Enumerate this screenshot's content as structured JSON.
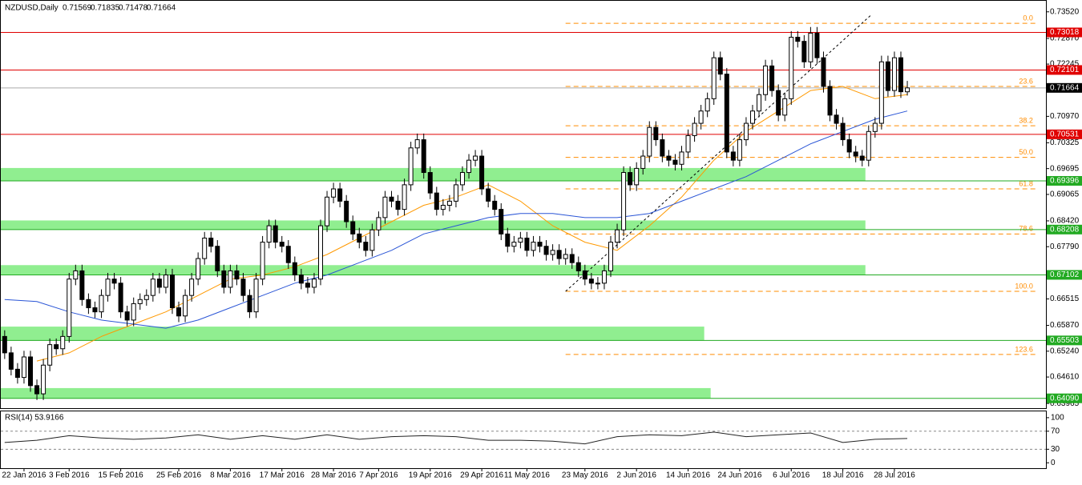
{
  "chart_data": {
    "type": "candlestick",
    "header": "NZDUSD,Daily",
    "candles": {
      "open": [
        0.656,
        0.652,
        0.648,
        0.646,
        0.651,
        0.644,
        0.642,
        0.649,
        0.654,
        0.653,
        0.656,
        0.67,
        0.672,
        0.665,
        0.663,
        0.662,
        0.666,
        0.67,
        0.669,
        0.662,
        0.66,
        0.664,
        0.665,
        0.666,
        0.67,
        0.668,
        0.671,
        0.663,
        0.661,
        0.666,
        0.67,
        0.675,
        0.68,
        0.678,
        0.672,
        0.668,
        0.672,
        0.67,
        0.666,
        0.662,
        0.67,
        0.679,
        0.683,
        0.679,
        0.678,
        0.674,
        0.671,
        0.669,
        0.668,
        0.67,
        0.683,
        0.69,
        0.692,
        0.689,
        0.684,
        0.681,
        0.679,
        0.677,
        0.682,
        0.685,
        0.69,
        0.689,
        0.687,
        0.693,
        0.702,
        0.704,
        0.696,
        0.691,
        0.687,
        0.688,
        0.689,
        0.693,
        0.696,
        0.699,
        0.7,
        0.692,
        0.689,
        0.687,
        0.681,
        0.678,
        0.679,
        0.68,
        0.677,
        0.679,
        0.678,
        0.676,
        0.677,
        0.675,
        0.676,
        0.674,
        0.672,
        0.67,
        0.669,
        0.669,
        0.672,
        0.679,
        0.682,
        0.696,
        0.693,
        0.697,
        0.7,
        0.707,
        0.704,
        0.7,
        0.699,
        0.698,
        0.701,
        0.705,
        0.708,
        0.711,
        0.714,
        0.724,
        0.72,
        0.701,
        0.699,
        0.704,
        0.708,
        0.711,
        0.715,
        0.722,
        0.716,
        0.71,
        0.714,
        0.729,
        0.728,
        0.723,
        0.73,
        0.724,
        0.717,
        0.71,
        0.708,
        0.704,
        0.701,
        0.7,
        0.699,
        0.706,
        0.708,
        0.723,
        0.716,
        0.724,
        0.71569
      ],
      "high": [
        0.6575,
        0.6535,
        0.6495,
        0.6525,
        0.6525,
        0.6455,
        0.6505,
        0.6555,
        0.6555,
        0.6575,
        0.6715,
        0.6735,
        0.6735,
        0.6665,
        0.6645,
        0.6675,
        0.6715,
        0.6715,
        0.6705,
        0.6635,
        0.6655,
        0.6665,
        0.6675,
        0.6715,
        0.6715,
        0.6725,
        0.6725,
        0.6645,
        0.6675,
        0.6715,
        0.6765,
        0.6815,
        0.6815,
        0.6795,
        0.6735,
        0.6735,
        0.6735,
        0.6715,
        0.6675,
        0.6715,
        0.6805,
        0.6845,
        0.6845,
        0.6805,
        0.6795,
        0.6755,
        0.6725,
        0.6705,
        0.6715,
        0.6845,
        0.6915,
        0.6935,
        0.6935,
        0.6905,
        0.6855,
        0.6825,
        0.6805,
        0.6835,
        0.6865,
        0.6915,
        0.6915,
        0.6905,
        0.6945,
        0.7035,
        0.7055,
        0.7055,
        0.6975,
        0.6925,
        0.6895,
        0.6905,
        0.6945,
        0.6975,
        0.7005,
        0.7015,
        0.7015,
        0.6935,
        0.6905,
        0.6885,
        0.6825,
        0.6805,
        0.6815,
        0.6815,
        0.6805,
        0.6805,
        0.6795,
        0.6785,
        0.6785,
        0.6775,
        0.6775,
        0.6755,
        0.6735,
        0.6715,
        0.6705,
        0.6735,
        0.6805,
        0.6835,
        0.6975,
        0.6975,
        0.6985,
        0.7015,
        0.7085,
        0.7085,
        0.7055,
        0.7015,
        0.7005,
        0.7025,
        0.7065,
        0.7095,
        0.7125,
        0.7155,
        0.7255,
        0.7255,
        0.7215,
        0.7025,
        0.7055,
        0.7095,
        0.7125,
        0.7165,
        0.7235,
        0.7235,
        0.7175,
        0.7155,
        0.7305,
        0.7305,
        0.7295,
        0.7315,
        0.7315,
        0.7255,
        0.7185,
        0.7115,
        0.7095,
        0.7055,
        0.7025,
        0.7015,
        0.7075,
        0.7095,
        0.7245,
        0.7245,
        0.7255,
        0.7255,
        0.71835
      ],
      "low": [
        0.6505,
        0.6465,
        0.6445,
        0.6445,
        0.6425,
        0.6405,
        0.6405,
        0.6475,
        0.6515,
        0.6515,
        0.6545,
        0.6685,
        0.6635,
        0.6615,
        0.6605,
        0.6605,
        0.6645,
        0.6675,
        0.6605,
        0.6585,
        0.6585,
        0.6625,
        0.6635,
        0.6645,
        0.6665,
        0.6665,
        0.6615,
        0.6595,
        0.6595,
        0.6645,
        0.6685,
        0.6735,
        0.6765,
        0.6705,
        0.6665,
        0.6665,
        0.6685,
        0.6645,
        0.6605,
        0.6605,
        0.6685,
        0.6775,
        0.6775,
        0.6765,
        0.6725,
        0.6695,
        0.6675,
        0.6665,
        0.6665,
        0.6685,
        0.6815,
        0.6885,
        0.6875,
        0.6825,
        0.6795,
        0.6775,
        0.6755,
        0.6755,
        0.6805,
        0.6835,
        0.6875,
        0.6855,
        0.6855,
        0.6915,
        0.7005,
        0.6945,
        0.6895,
        0.6855,
        0.6855,
        0.6865,
        0.6875,
        0.6915,
        0.6945,
        0.6975,
        0.6905,
        0.6875,
        0.6855,
        0.6795,
        0.6765,
        0.6765,
        0.6775,
        0.6755,
        0.6755,
        0.6765,
        0.6745,
        0.6745,
        0.6735,
        0.6735,
        0.6725,
        0.6705,
        0.6685,
        0.6675,
        0.6675,
        0.6675,
        0.6705,
        0.6775,
        0.6805,
        0.6915,
        0.6915,
        0.6955,
        0.6985,
        0.7025,
        0.6985,
        0.6975,
        0.6965,
        0.6965,
        0.6995,
        0.7035,
        0.7065,
        0.7095,
        0.7125,
        0.7185,
        0.6995,
        0.6975,
        0.6975,
        0.7025,
        0.7065,
        0.7095,
        0.7135,
        0.7145,
        0.7085,
        0.7085,
        0.7125,
        0.7265,
        0.7215,
        0.7215,
        0.7225,
        0.7155,
        0.7085,
        0.7065,
        0.7025,
        0.6995,
        0.6985,
        0.6975,
        0.6975,
        0.7045,
        0.7065,
        0.7145,
        0.7145,
        0.7142,
        0.71478
      ],
      "close": [
        0.652,
        0.648,
        0.646,
        0.651,
        0.644,
        0.642,
        0.649,
        0.654,
        0.653,
        0.656,
        0.67,
        0.672,
        0.665,
        0.663,
        0.662,
        0.666,
        0.67,
        0.669,
        0.662,
        0.66,
        0.664,
        0.665,
        0.666,
        0.67,
        0.668,
        0.671,
        0.663,
        0.661,
        0.666,
        0.67,
        0.675,
        0.68,
        0.678,
        0.672,
        0.668,
        0.672,
        0.67,
        0.666,
        0.662,
        0.67,
        0.679,
        0.683,
        0.679,
        0.678,
        0.674,
        0.671,
        0.669,
        0.668,
        0.67,
        0.683,
        0.69,
        0.692,
        0.689,
        0.684,
        0.681,
        0.679,
        0.677,
        0.682,
        0.685,
        0.69,
        0.689,
        0.687,
        0.693,
        0.702,
        0.704,
        0.696,
        0.691,
        0.687,
        0.688,
        0.689,
        0.693,
        0.696,
        0.699,
        0.7,
        0.692,
        0.689,
        0.687,
        0.681,
        0.678,
        0.679,
        0.68,
        0.677,
        0.679,
        0.678,
        0.676,
        0.677,
        0.675,
        0.676,
        0.674,
        0.672,
        0.67,
        0.669,
        0.669,
        0.672,
        0.679,
        0.682,
        0.696,
        0.693,
        0.697,
        0.7,
        0.707,
        0.704,
        0.7,
        0.699,
        0.698,
        0.701,
        0.705,
        0.708,
        0.711,
        0.714,
        0.724,
        0.72,
        0.701,
        0.699,
        0.704,
        0.708,
        0.711,
        0.715,
        0.722,
        0.716,
        0.71,
        0.714,
        0.729,
        0.728,
        0.723,
        0.73,
        0.724,
        0.717,
        0.71,
        0.708,
        0.704,
        0.701,
        0.7,
        0.699,
        0.706,
        0.708,
        0.723,
        0.716,
        0.724,
        0.7157,
        0.71664
      ]
    },
    "averages": [
      {
        "color": "#ff9900",
        "x": [
          5,
          10,
          15,
          20,
          25,
          30,
          35,
          40,
          45,
          50,
          55,
          60,
          65,
          70,
          75,
          80,
          85,
          90,
          95,
          100,
          105,
          110,
          115,
          120,
          125,
          130,
          135,
          140
        ],
        "values": [
          0.65,
          0.652,
          0.656,
          0.659,
          0.662,
          0.666,
          0.67,
          0.671,
          0.673,
          0.676,
          0.68,
          0.684,
          0.688,
          0.69,
          0.693,
          0.689,
          0.683,
          0.679,
          0.677,
          0.683,
          0.69,
          0.699,
          0.706,
          0.711,
          0.716,
          0.717,
          0.714,
          0.715
        ]
      },
      {
        "color": "#2a55d6",
        "x": [
          0,
          5,
          10,
          15,
          20,
          25,
          30,
          35,
          40,
          45,
          50,
          55,
          60,
          65,
          70,
          75,
          80,
          85,
          90,
          95,
          100,
          105,
          110,
          115,
          120,
          125,
          130,
          135,
          140
        ],
        "values": [
          0.665,
          0.6645,
          0.662,
          0.66,
          0.659,
          0.658,
          0.66,
          0.663,
          0.666,
          0.669,
          0.671,
          0.674,
          0.677,
          0.681,
          0.683,
          0.685,
          0.686,
          0.686,
          0.685,
          0.685,
          0.686,
          0.689,
          0.692,
          0.695,
          0.699,
          0.703,
          0.706,
          0.709,
          0.711
        ]
      }
    ],
    "levels": [
      {
        "value": 0.73018,
        "color": "#e00000"
      },
      {
        "value": 0.72101,
        "color": "#e00000"
      },
      {
        "value": 0.70531,
        "color": "#e00000"
      },
      {
        "value": 0.69396,
        "color": "#22aa22"
      },
      {
        "value": 0.68208,
        "color": "#22aa22"
      },
      {
        "value": 0.67102,
        "color": "#22aa22"
      },
      {
        "value": 0.65503,
        "color": "#22aa22"
      },
      {
        "value": {
          "value": 0.6409,
          "label": "0.64090"
        },
        "color": "#22aa22"
      }
    ],
    "current": 0.71664,
    "zones": [
      {
        "ylim": [
          0.694,
          0.6971
        ],
        "xlim": [
          -0.6,
          133.5
        ]
      },
      {
        "ylim": [
          0.6821,
          0.6843
        ],
        "xlim": [
          -0.6,
          133.5
        ]
      },
      {
        "ylim": [
          0.6711,
          0.6734
        ],
        "xlim": [
          -0.6,
          133.5
        ]
      },
      {
        "ylim": [
          0.655,
          0.6584
        ],
        "xlim": [
          -0.6,
          108.5
        ]
      },
      {
        "ylim": [
          0.6409,
          0.6434
        ],
        "xlim": [
          -0.6,
          109.5
        ]
      }
    ],
    "zone_color": "#90ee90",
    "fibonacci": {
      "color": "#ff8c00",
      "xlim": [
        87,
        160
      ],
      "levels": [
        {
          "value": 0.7324,
          "label": "0.0"
        },
        {
          "value": 0.717,
          "label": "23.6"
        },
        {
          "value": 0.7074,
          "label": "38.2"
        },
        {
          "value": 0.6997,
          "label": "50.0"
        },
        {
          "value": 0.692,
          "label": "61.8"
        },
        {
          "value": 0.681,
          "label": "78.6"
        },
        {
          "value": 0.667,
          "label": "100.0"
        },
        {
          "value": 0.6516,
          "label": "123.6"
        }
      ]
    },
    "trendline": {
      "x": [
        87,
        134.5
      ],
      "values": [
        0.667,
        0.7346
      ]
    },
    "xlim": [
      -0.6,
      161.5
    ],
    "ylim": [
      0.6385,
      0.7375
    ],
    "yticks": [
      {
        "value": 0.7352,
        "label": "0.73520"
      },
      {
        "value": 0.7287,
        "label": "0.72870"
      },
      0.72245,
      {
        "value": 0.7097,
        "label": "0.70970"
      },
      0.70325,
      0.69695,
      0.69065,
      {
        "value": 0.6842,
        "label": "0.68420"
      },
      {
        "value": 0.6779,
        "label": "0.67790"
      },
      0.66515,
      {
        "value": 0.6587,
        "label": "0.65870"
      },
      {
        "value": 0.6524,
        "label": "0.65240"
      },
      {
        "value": 0.6461,
        "label": "0.64610"
      },
      0.63965
    ],
    "xticks": [
      {
        "value": 3,
        "label": "22 Jan 2016"
      },
      {
        "value": 10,
        "label": "3 Feb 2016"
      },
      {
        "value": 18,
        "label": "15 Feb 2016"
      },
      {
        "value": 27,
        "label": "25 Feb 2016"
      },
      {
        "value": 35,
        "label": "8 Mar 2016"
      },
      {
        "value": 43,
        "label": "17 Mar 2016"
      },
      {
        "value": 51,
        "label": "28 Mar 2016"
      },
      {
        "value": 58,
        "label": "7 Apr 2016"
      },
      {
        "value": 66,
        "label": "19 Apr 2016"
      },
      {
        "value": 74,
        "label": "29 Apr 2016"
      },
      {
        "value": 81,
        "label": "11 May 2016"
      },
      {
        "value": 90,
        "label": "23 May 2016"
      },
      {
        "value": 98,
        "label": "2 Jun 2016"
      },
      {
        "value": 106,
        "label": "14 Jun 2016"
      },
      {
        "value": 114,
        "label": "24 Jun 2016"
      },
      {
        "value": 122,
        "label": "6 Jul 2016"
      },
      {
        "value": 130,
        "label": "18 Jul 2016"
      },
      {
        "value": 138,
        "label": "28 Jul 2016"
      }
    ],
    "rsi": {
      "title": "RSI(14) 53.9166",
      "color": "#222222",
      "ylim": [
        -12,
        114
      ],
      "yticks": [
        100,
        70,
        30,
        0
      ],
      "guides": [
        70,
        30
      ],
      "x": [
        0,
        5,
        10,
        15,
        20,
        25,
        30,
        35,
        40,
        45,
        50,
        55,
        60,
        65,
        70,
        75,
        80,
        85,
        90,
        95,
        100,
        105,
        110,
        115,
        120,
        125,
        130,
        135,
        140
      ],
      "values": [
        45,
        50,
        60,
        55,
        52,
        55,
        62,
        52,
        60,
        52,
        62,
        52,
        58,
        60,
        58,
        50,
        50,
        48,
        42,
        58,
        62,
        60,
        68,
        58,
        62,
        66,
        45,
        52,
        53.9
      ]
    }
  }
}
